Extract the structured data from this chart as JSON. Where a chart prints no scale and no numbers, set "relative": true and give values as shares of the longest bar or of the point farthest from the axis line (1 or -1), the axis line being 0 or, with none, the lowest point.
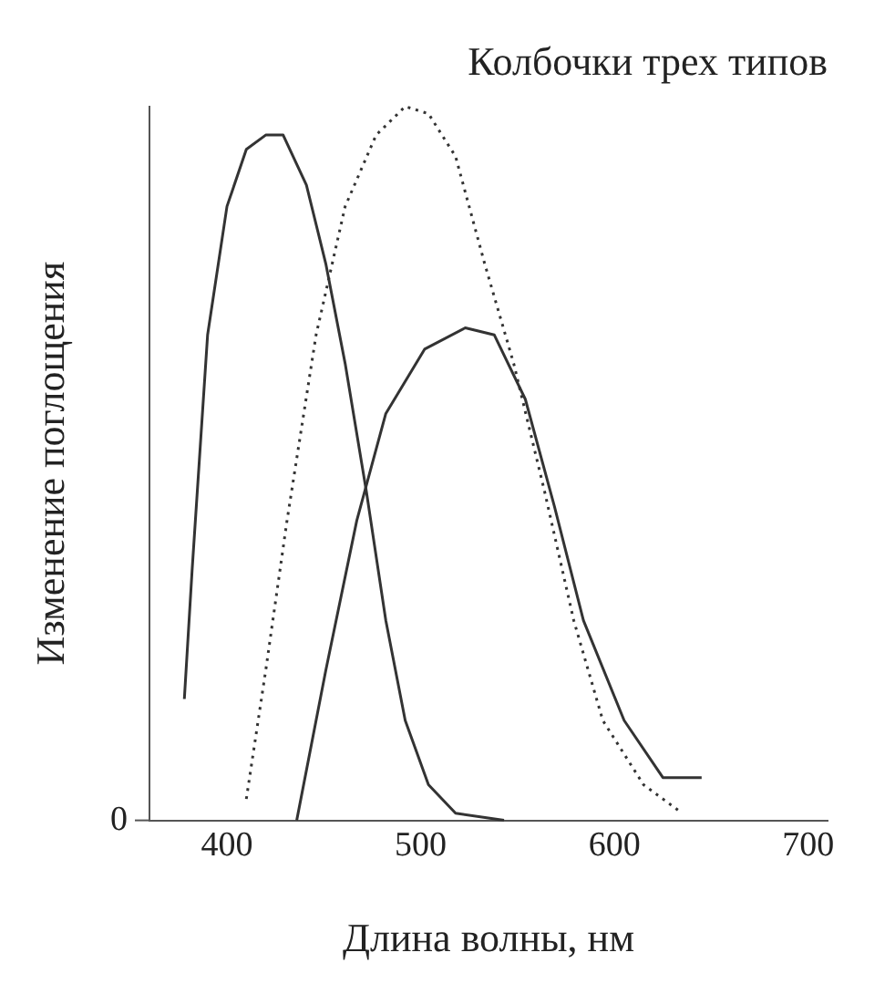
{
  "chart_data": {
    "type": "line",
    "title": "Колбочки трех типов",
    "xlabel": "Длина волны, нм",
    "ylabel": "Изменение поглощения",
    "relative": true,
    "annotations": [
      "0"
    ],
    "xlim": [
      360,
      710
    ],
    "xticks": [
      400,
      500,
      600,
      700
    ],
    "grid": false,
    "legend": false,
    "marker": "none",
    "series": [
      {
        "color": "#333333",
        "line_style": "solid",
        "x": [
          378,
          382,
          390,
          400,
          410,
          420,
          429,
          441,
          451,
          461,
          472,
          482,
          492,
          504,
          518,
          543
        ],
        "values": [
          0.17,
          0.35,
          0.68,
          0.86,
          0.94,
          0.96,
          0.96,
          0.89,
          0.78,
          0.64,
          0.46,
          0.28,
          0.14,
          0.05,
          0.01,
          0
        ]
      },
      {
        "color": "#333333",
        "line_style": "dotted",
        "x": [
          410,
          420,
          431,
          446,
          461,
          477,
          492,
          504,
          518,
          533,
          548,
          564,
          579,
          594,
          615,
          635
        ],
        "values": [
          0.03,
          0.21,
          0.42,
          0.68,
          0.86,
          0.96,
          1,
          0.99,
          0.93,
          0.78,
          0.64,
          0.46,
          0.28,
          0.14,
          0.05,
          0.01
        ]
      },
      {
        "color": "#333333",
        "line_style": "solid",
        "x": [
          436,
          451,
          467,
          482,
          502,
          523,
          538,
          554,
          569,
          584,
          605,
          625,
          645
        ],
        "values": [
          0,
          0.21,
          0.42,
          0.57,
          0.66,
          0.69,
          0.68,
          0.59,
          0.44,
          0.28,
          0.14,
          0.06,
          0.06
        ]
      }
    ]
  }
}
